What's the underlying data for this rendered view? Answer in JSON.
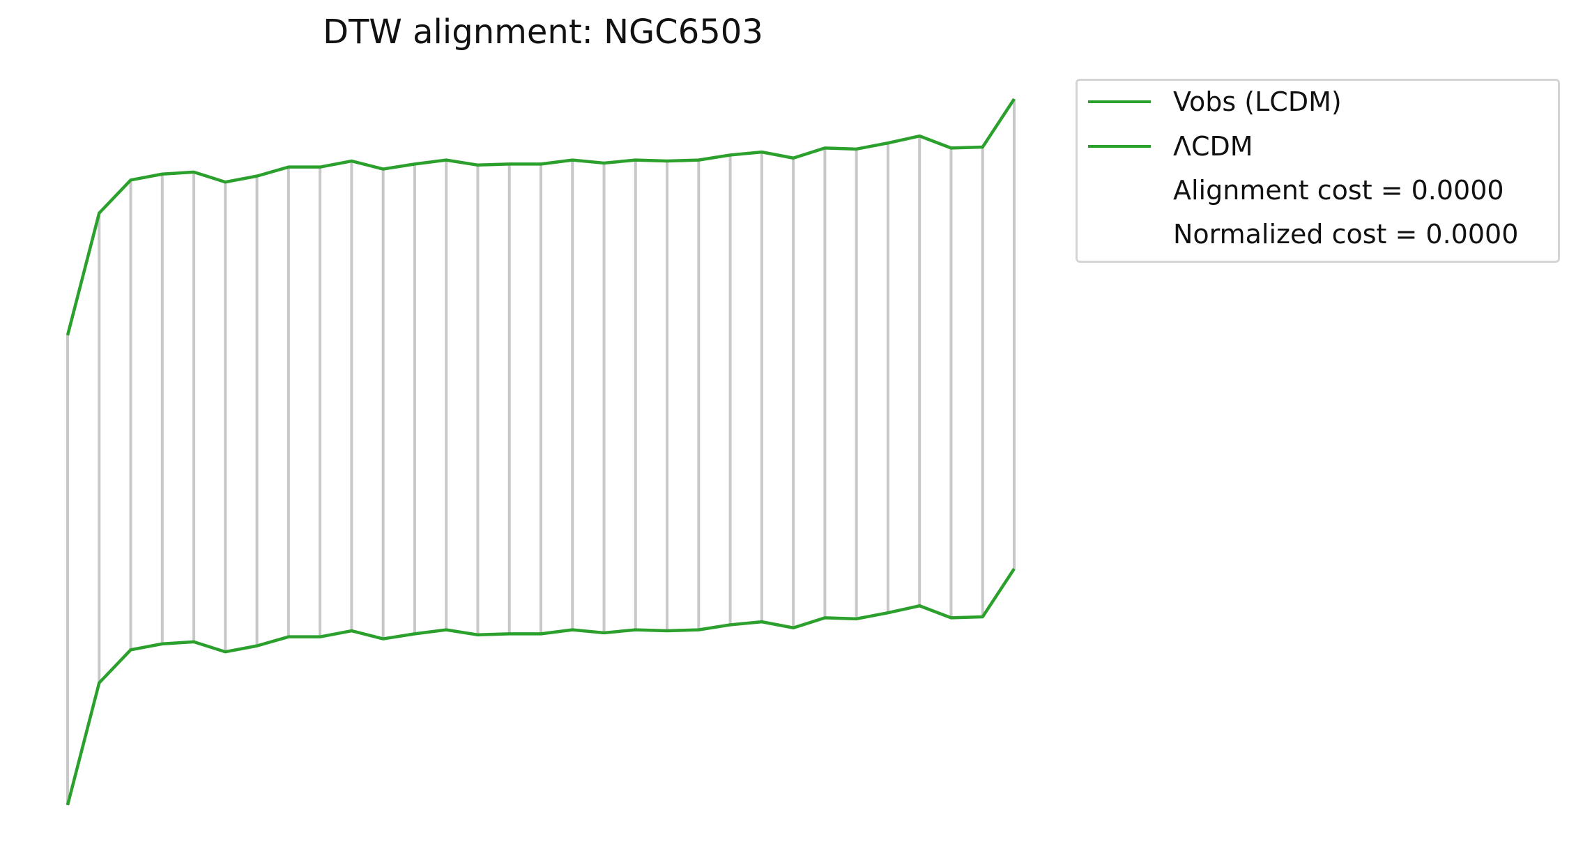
{
  "chart_data": {
    "type": "line",
    "title": "DTW alignment: NGC6503",
    "xlabel": "",
    "ylabel": "",
    "axes_visible": false,
    "grid": false,
    "legend_position": "outside top-right",
    "connector_color": "#c8c8c8",
    "x": [
      0,
      1,
      2,
      3,
      4,
      5,
      6,
      7,
      8,
      9,
      10,
      11,
      12,
      13,
      14,
      15,
      16,
      17,
      18,
      19,
      20,
      21,
      22,
      23,
      24,
      25,
      26,
      27,
      28,
      29,
      30
    ],
    "series": [
      {
        "name": "Vobs (LCDM)",
        "color": "#2ca02c",
        "values": [
          -1.0,
          0.22,
          0.55,
          0.61,
          0.63,
          0.53,
          0.59,
          0.68,
          0.68,
          0.74,
          0.66,
          0.71,
          0.75,
          0.7,
          0.71,
          0.71,
          0.75,
          0.72,
          0.75,
          0.74,
          0.75,
          0.8,
          0.83,
          0.77,
          0.87,
          0.86,
          0.92,
          0.99,
          0.87,
          0.88,
          1.36
        ]
      },
      {
        "name": "ΛCDM",
        "color": "#2ca02c",
        "values": [
          -1.0,
          0.22,
          0.55,
          0.61,
          0.63,
          0.53,
          0.59,
          0.68,
          0.68,
          0.74,
          0.66,
          0.71,
          0.75,
          0.7,
          0.71,
          0.71,
          0.75,
          0.72,
          0.75,
          0.74,
          0.75,
          0.8,
          0.83,
          0.77,
          0.87,
          0.86,
          0.92,
          0.99,
          0.87,
          0.88,
          1.36
        ]
      }
    ],
    "annotations": [
      "Alignment cost = 0.0000",
      "Normalized cost = 0.0000"
    ]
  }
}
